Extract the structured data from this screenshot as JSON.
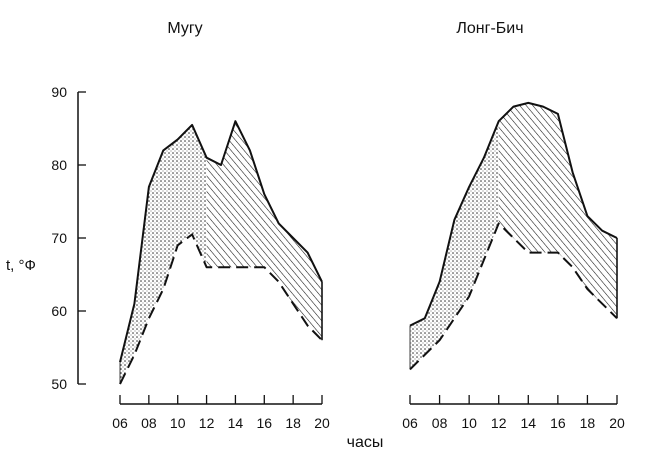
{
  "chart_data": [
    {
      "type": "area",
      "title": "Мугу",
      "ylabel": "t, °Ф",
      "xlabel": "часы",
      "ylim": [
        50,
        90
      ],
      "xlim": [
        6,
        20
      ],
      "x_ticks": [
        "06",
        "08",
        "10",
        "12",
        "14",
        "16",
        "18",
        "20"
      ],
      "y_ticks": [
        50,
        60,
        70,
        80,
        90
      ],
      "series": [
        {
          "style": "solid",
          "x": [
            6,
            7,
            8,
            9,
            10,
            11,
            12,
            13,
            14,
            15,
            16,
            17,
            18,
            19,
            20
          ],
          "y": [
            53,
            61,
            77,
            82,
            83.5,
            85.5,
            81,
            80,
            86,
            82,
            76,
            72,
            70,
            68,
            64
          ]
        },
        {
          "style": "dashed",
          "x": [
            6,
            7,
            8,
            9,
            10,
            11,
            12,
            13,
            14,
            15,
            16,
            17,
            18,
            19,
            20
          ],
          "y": [
            50,
            54,
            59,
            63,
            69,
            70.5,
            66,
            66,
            66,
            66,
            66,
            64,
            61,
            58,
            56
          ]
        }
      ]
    },
    {
      "type": "area",
      "title": "Лонг-Бич",
      "ylabel": "",
      "xlabel": "",
      "ylim": [
        50,
        90
      ],
      "xlim": [
        6,
        20
      ],
      "x_ticks": [
        "06",
        "08",
        "10",
        "12",
        "14",
        "16",
        "18",
        "20"
      ],
      "y_ticks": [],
      "series": [
        {
          "style": "solid",
          "x": [
            6,
            7,
            8,
            9,
            10,
            11,
            12,
            13,
            14,
            15,
            16,
            17,
            18,
            19,
            20
          ],
          "y": [
            58,
            59,
            64,
            72.5,
            77,
            81,
            86,
            88,
            88.5,
            88,
            87,
            79,
            73,
            71,
            70
          ]
        },
        {
          "style": "dashed",
          "x": [
            6,
            7,
            8,
            9,
            10,
            11,
            12,
            13,
            14,
            15,
            16,
            17,
            18,
            19,
            20
          ],
          "y": [
            52,
            54,
            56,
            59,
            62,
            67,
            72,
            70,
            68,
            68,
            68,
            66,
            63,
            61,
            59
          ]
        }
      ]
    }
  ]
}
